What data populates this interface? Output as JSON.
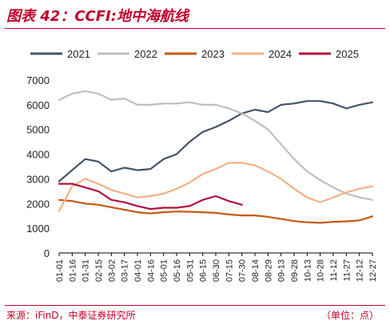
{
  "header": {
    "title": "图表 42：CCFI:地中海航线"
  },
  "footer": {
    "source": "来源：iFinD，中泰证券研究所",
    "unit": "（单位：点）"
  },
  "chart_data": {
    "type": "line",
    "title": "",
    "xlabel": "",
    "ylabel": "",
    "ylim": [
      0,
      7000
    ],
    "yticks": [
      0,
      1000,
      2000,
      3000,
      4000,
      5000,
      6000,
      7000
    ],
    "x": [
      "01-01",
      "01-16",
      "01-31",
      "02-15",
      "03-02",
      "03-17",
      "04-01",
      "04-16",
      "05-01",
      "05-16",
      "05-31",
      "06-15",
      "06-30",
      "07-15",
      "07-30",
      "08-14",
      "08-29",
      "09-13",
      "09-28",
      "10-13",
      "10-28",
      "11-12",
      "11-27",
      "12-12",
      "12-27"
    ],
    "legend_position": "top",
    "series": [
      {
        "name": "2021",
        "color": "#44546a",
        "values": [
          2900,
          3350,
          3800,
          3700,
          3300,
          3450,
          3350,
          3400,
          3800,
          4000,
          4500,
          4900,
          5100,
          5350,
          5650,
          5800,
          5700,
          6000,
          6050,
          6150,
          6150,
          6050,
          5850,
          6000,
          6100
        ]
      },
      {
        "name": "2022",
        "color": "#bfbfbf",
        "values": [
          6200,
          6450,
          6550,
          6450,
          6200,
          6250,
          6000,
          6000,
          6050,
          6050,
          6100,
          6000,
          6000,
          5850,
          5650,
          5350,
          5000,
          4400,
          3800,
          3300,
          2950,
          2650,
          2400,
          2250,
          2150
        ]
      },
      {
        "name": "2023",
        "color": "#c55a11",
        "values": [
          2150,
          2100,
          2000,
          1950,
          1850,
          1750,
          1650,
          1600,
          1650,
          1680,
          1670,
          1650,
          1620,
          1560,
          1520,
          1520,
          1460,
          1380,
          1290,
          1240,
          1220,
          1260,
          1280,
          1320,
          1480
        ]
      },
      {
        "name": "2024",
        "color": "#f4b084",
        "values": [
          1700,
          2700,
          3000,
          2800,
          2550,
          2400,
          2250,
          2300,
          2400,
          2600,
          2850,
          3200,
          3400,
          3650,
          3650,
          3550,
          3300,
          3000,
          2600,
          2250,
          2050,
          2250,
          2450,
          2600,
          2700
        ]
      },
      {
        "name": "2025",
        "color": "#b0103c",
        "values": [
          2800,
          2800,
          2650,
          2500,
          2150,
          2050,
          1900,
          1780,
          1830,
          1830,
          1900,
          2150,
          2300,
          2100,
          1950,
          null,
          null,
          null,
          null,
          null,
          null,
          null,
          null,
          null,
          null
        ]
      }
    ]
  }
}
